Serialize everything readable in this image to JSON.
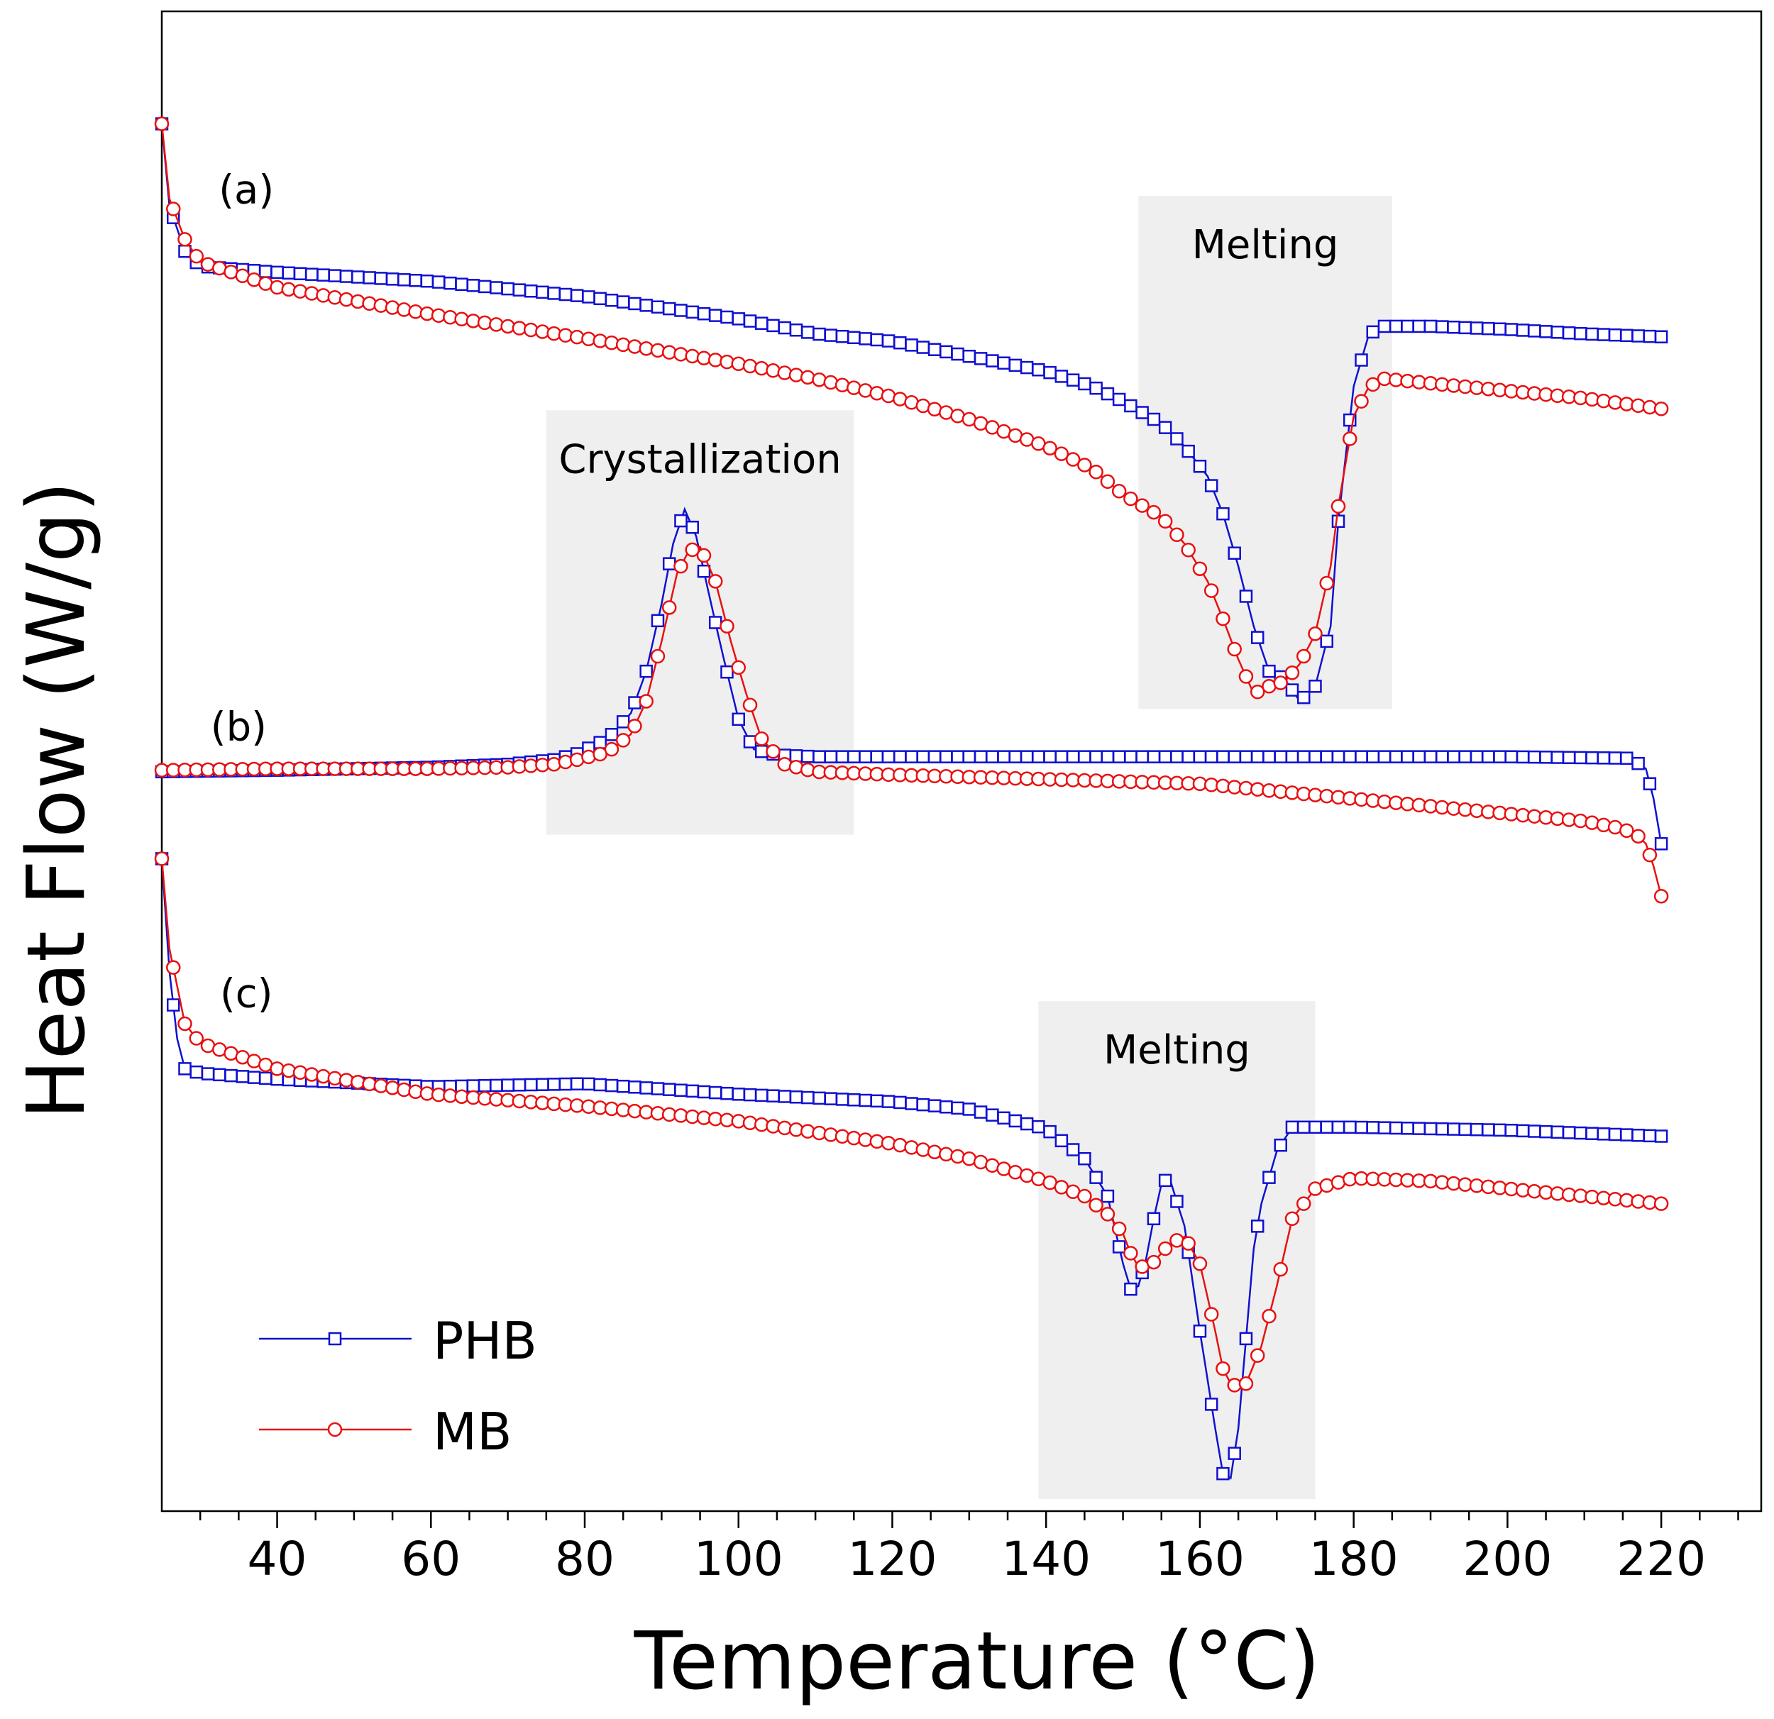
{
  "chart_data": {
    "type": "line",
    "title": "",
    "xlabel": "Temperature (°C)",
    "ylabel": "Heat Flow (W/g)",
    "xlim": [
      25,
      233
    ],
    "ylim": [
      0,
      100
    ],
    "y_note": "arbitrary units; y-axis has no tick labels, curves are vertically offset",
    "x_ticks": [
      40,
      60,
      80,
      100,
      120,
      140,
      160,
      180,
      200,
      220
    ],
    "x_tick_labels": [
      "40",
      "60",
      "80",
      "100",
      "120",
      "140",
      "160",
      "180",
      "200",
      "220"
    ],
    "grid": false,
    "legend_position": "bottom-left",
    "legend": [
      {
        "name": "PHB",
        "color": "#1010d0",
        "marker": "square"
      },
      {
        "name": "MB",
        "color": "#e81010",
        "marker": "circle"
      }
    ],
    "regions": [
      {
        "label": "Melting",
        "x0": 152,
        "x1": 185,
        "y0": 53.5,
        "y1": 87.7
      },
      {
        "label": "Crystallization",
        "x0": 75,
        "x1": 115,
        "y0": 45.1,
        "y1": 73.4
      },
      {
        "label": "Melting",
        "x0": 139,
        "x1": 175,
        "y0": 0.8,
        "y1": 34.0
      }
    ],
    "annotations": [
      {
        "text": "(a)",
        "x": 36,
        "y": 87.2
      },
      {
        "text": "(b)",
        "x": 35,
        "y": 51.4
      },
      {
        "text": "(c)",
        "x": 36,
        "y": 33.6
      }
    ],
    "panels": [
      {
        "label": "(a)",
        "series": [
          {
            "name": "PHB",
            "x": [
              25,
              26,
              28,
              30,
              40,
              60,
              80,
              100,
              110,
              120,
              130,
              140,
              146,
              150,
              155,
              158,
              161,
              163,
              165,
              167,
              169,
              171,
              173,
              175,
              177,
              178,
              180,
              182,
              184,
              190,
              200,
              210,
              220
            ],
            "y": [
              92.5,
              87,
              84,
              83,
              82.6,
              82,
              81,
              79.5,
              78.5,
              78,
              77,
              76,
              75,
              74,
              72.5,
              71,
              69,
              66.5,
              63,
              59,
              56,
              55.5,
              54,
              55,
              59,
              66,
              75,
              78.5,
              79,
              79,
              78.8,
              78.5,
              78.3
            ]
          },
          {
            "name": "MB",
            "x": [
              25,
              26,
              28,
              30,
              40,
              60,
              80,
              100,
              110,
              120,
              130,
              140,
              146,
              150,
              155,
              158,
              161,
              163,
              165,
              167,
              169,
              171,
              173,
              175,
              177,
              178,
              180,
              182,
              184,
              190,
              200,
              210,
              220
            ],
            "y": [
              92.5,
              87.5,
              84.8,
              83.3,
              81.6,
              79.8,
              78.2,
              76.5,
              75.5,
              74.3,
              72.8,
              71,
              69.5,
              67.8,
              66.3,
              64.5,
              62,
              59.5,
              56.8,
              54.5,
              55,
              55.3,
              56.5,
              58.5,
              63,
              67,
              73,
              75,
              75.5,
              75.2,
              74.7,
              74.2,
              73.5
            ]
          }
        ]
      },
      {
        "label": "(b)",
        "series": [
          {
            "name": "PHB",
            "x": [
              25,
              40,
              60,
              70,
              76,
              79,
              83,
              86,
              88,
              90,
              91.5,
              93,
              94.5,
              96,
              98,
              100,
              102,
              104,
              106,
              110,
              120,
              140,
              160,
              180,
              200,
              216,
              218,
              219,
              220
            ],
            "y": [
              49.3,
              49.4,
              49.6,
              49.8,
              50.1,
              50.5,
              51.5,
              53.2,
              56,
              60.5,
              64.5,
              66.8,
              65,
              61.5,
              57,
              52.8,
              50.8,
              50.5,
              50.4,
              50.3,
              50.3,
              50.3,
              50.3,
              50.3,
              50.3,
              50.2,
              49.5,
              47.5,
              44.5
            ]
          },
          {
            "name": "MB",
            "x": [
              25,
              40,
              60,
              70,
              76,
              79,
              83,
              86,
              88,
              90,
              92,
              93.5,
              95,
              97,
              99,
              101,
              103,
              106,
              110,
              120,
              140,
              160,
              180,
              200,
              210,
              215,
              217,
              218,
              219,
              220
            ],
            "y": [
              49.4,
              49.5,
              49.5,
              49.6,
              49.8,
              50.1,
              50.6,
              51.8,
              54,
              58,
              62.5,
              64,
              64.3,
              62,
              58,
              54.5,
              51.5,
              49.8,
              49.3,
              49.1,
              48.8,
              48.5,
              47.5,
              46.5,
              46,
              45.5,
              45,
              44.5,
              43,
              41
            ]
          }
        ]
      },
      {
        "label": "(c)",
        "series": [
          {
            "name": "PHB",
            "x": [
              25,
              26,
              27,
              28,
              30,
              40,
              60,
              80,
              100,
              120,
              130,
              140,
              145,
              148,
              150,
              151,
              152,
              153,
              154,
              155,
              156,
              158,
              160,
              162,
              163,
              164,
              165,
              166,
              167,
              168,
              170,
              172,
              175,
              180,
              190,
              200,
              210,
              220
            ],
            "y": [
              43.5,
              36,
              31.5,
              29.5,
              29.2,
              28.8,
              28.3,
              28.5,
              27.8,
              27.3,
              26.8,
              25.5,
              23.5,
              21,
              16.5,
              14.8,
              15,
              16.8,
              19.5,
              21.8,
              22.3,
              19,
              12,
              5.5,
              2.5,
              2.2,
              5.5,
              11.5,
              17.5,
              20.5,
              24,
              25.6,
              25.6,
              25.6,
              25.5,
              25.4,
              25.2,
              25
            ]
          },
          {
            "name": "MB",
            "x": [
              25,
              26,
              28,
              30,
              40,
              60,
              80,
              100,
              120,
              130,
              140,
              145,
              148,
              150,
              151,
              152,
              153,
              154,
              156,
              158,
              160,
              162,
              163,
              164,
              165,
              166,
              168,
              170,
              172,
              175,
              180,
              190,
              200,
              210,
              220
            ],
            "y": [
              43.5,
              37.5,
              32.5,
              31.2,
              29.5,
              27.8,
              27,
              26,
              24.5,
              23.5,
              22,
              21,
              19.8,
              18.5,
              17.2,
              16.3,
              16.3,
              16.6,
              17.8,
              18.3,
              16.5,
              12,
              9.5,
              8.5,
              8.3,
              8.5,
              11,
              15,
              19.5,
              21.5,
              22.2,
              22,
              21.5,
              21,
              20.5
            ]
          }
        ]
      }
    ]
  }
}
